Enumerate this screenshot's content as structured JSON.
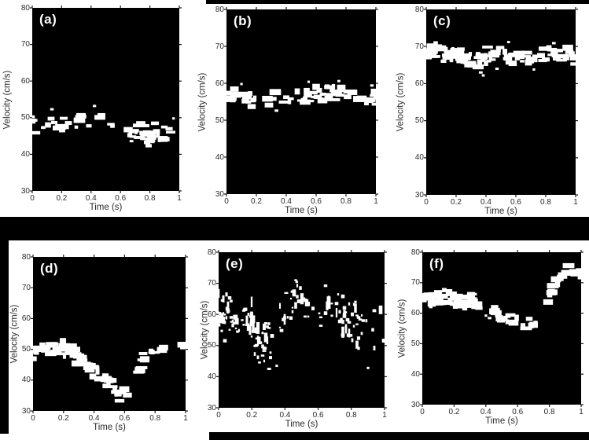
{
  "figure": {
    "title": "",
    "background": "#ffffff",
    "plot_background": "#000000",
    "trace_color": "#ffffff",
    "text_color": "#2a2a2a",
    "decor_color": "#000000",
    "axis": {
      "xlabel": "Time (s)",
      "ylabel": "Velocity (cm/s)",
      "xlim": [
        0,
        1
      ],
      "ylim": [
        30,
        80
      ],
      "xticks": [
        "0",
        "0.2",
        "0.4",
        "0.6",
        "0.8",
        "1"
      ],
      "xtick_values": [
        0,
        0.2,
        0.4,
        0.6,
        0.8,
        1
      ],
      "yticks": [
        "30",
        "40",
        "50",
        "60",
        "70",
        "80"
      ],
      "ytick_values": [
        30,
        40,
        50,
        60,
        70,
        80
      ],
      "grid": false,
      "legend": "none"
    }
  },
  "chart_data": [
    {
      "label": "(a)",
      "type": "scatter",
      "description": "binary speckle velocity band, slight downward drift ~49 to ~45 cm/s",
      "xlabel": "Time (s)",
      "ylabel": "Velocity (cm/s)",
      "xlim": [
        0,
        1
      ],
      "ylim": [
        30,
        80
      ],
      "x": [
        0,
        0.05,
        0.1,
        0.15,
        0.2,
        0.25,
        0.3,
        0.35,
        0.4,
        0.45,
        0.5,
        0.55,
        0.6,
        0.65,
        0.7,
        0.75,
        0.8,
        0.85,
        0.9,
        0.95,
        1
      ],
      "mean_velocity": [
        48.5,
        48.2,
        48.4,
        47.6,
        47.4,
        47.2,
        48.3,
        48.6,
        49.0,
        48.4,
        48.8,
        48.0,
        47.2,
        46.6,
        46.0,
        45.6,
        45.2,
        46.0,
        45.6,
        45.4,
        45.0
      ],
      "band_halfwidth": 2.3,
      "density": 0.62,
      "streaky": false,
      "gaps": [
        [
          0.255,
          0.285
        ],
        [
          0.555,
          0.58
        ]
      ],
      "outliers": [
        [
          0.42,
          53.2
        ],
        [
          0.13,
          52.3
        ],
        [
          0.67,
          43.6
        ],
        [
          0.96,
          49.8
        ]
      ]
    },
    {
      "label": "(b)",
      "type": "scatter",
      "description": "binary speckle velocity band, nearly flat ~55-57.5 cm/s",
      "xlabel": "Time (s)",
      "ylabel": "Velocity (cm/s)",
      "xlim": [
        0,
        1
      ],
      "ylim": [
        30,
        80
      ],
      "x": [
        0,
        0.05,
        0.1,
        0.15,
        0.2,
        0.25,
        0.3,
        0.35,
        0.4,
        0.45,
        0.5,
        0.55,
        0.6,
        0.65,
        0.7,
        0.75,
        0.8,
        0.85,
        0.9,
        0.95,
        1
      ],
      "mean_velocity": [
        56.6,
        56.4,
        56.0,
        55.6,
        56.0,
        55.4,
        55.0,
        55.2,
        55.6,
        55.2,
        56.4,
        57.4,
        57.0,
        57.2,
        57.4,
        57.0,
        57.4,
        56.6,
        55.6,
        55.4,
        56.4
      ],
      "band_halfwidth": 1.9,
      "density": 0.6,
      "streaky": false,
      "gaps": [
        [
          0.2,
          0.23
        ],
        [
          0.46,
          0.49
        ]
      ],
      "outliers": [
        [
          0.1,
          59.8
        ],
        [
          0.55,
          60.4
        ],
        [
          0.75,
          60.6
        ],
        [
          0.97,
          59.4
        ],
        [
          0.33,
          52.6
        ]
      ]
    },
    {
      "label": "(c)",
      "type": "scatter",
      "description": "binary speckle velocity band, nearly flat ~66-68.5 cm/s",
      "xlabel": "Time (s)",
      "ylabel": "Velocity (cm/s)",
      "xlim": [
        0,
        1
      ],
      "ylim": [
        30,
        80
      ],
      "x": [
        0,
        0.05,
        0.1,
        0.15,
        0.2,
        0.25,
        0.3,
        0.35,
        0.4,
        0.45,
        0.5,
        0.55,
        0.6,
        0.65,
        0.7,
        0.75,
        0.8,
        0.85,
        0.9,
        0.95,
        1
      ],
      "mean_velocity": [
        68.2,
        68.5,
        68.0,
        67.6,
        67.4,
        67.0,
        67.2,
        66.2,
        67.8,
        67.4,
        68.0,
        67.0,
        66.4,
        66.0,
        66.6,
        67.4,
        67.0,
        68.4,
        67.6,
        68.0,
        67.6
      ],
      "band_halfwidth": 1.9,
      "density": 0.6,
      "streaky": false,
      "gaps": [
        [
          0.31,
          0.34
        ]
      ],
      "outliers": [
        [
          0.36,
          63.0
        ],
        [
          0.38,
          62.2
        ],
        [
          0.72,
          63.8
        ],
        [
          0.55,
          71.2
        ],
        [
          0.85,
          70.9
        ],
        [
          0.47,
          64.0
        ]
      ]
    },
    {
      "label": "(d)",
      "type": "scatter",
      "description": "V-shaped dip: ~50 cm/s falling to ~34.5 at t=0.6, recovering to ~51.5",
      "xlabel": "Time (s)",
      "ylabel": "Velocity (cm/s)",
      "xlim": [
        0,
        1
      ],
      "ylim": [
        30,
        80
      ],
      "x": [
        0,
        0.05,
        0.1,
        0.15,
        0.2,
        0.25,
        0.3,
        0.35,
        0.4,
        0.45,
        0.5,
        0.55,
        0.6,
        0.65,
        0.7,
        0.75,
        0.8,
        0.85,
        0.9,
        0.95,
        1
      ],
      "mean_velocity": [
        49.2,
        49.4,
        49.6,
        50.2,
        50.4,
        49.0,
        47.0,
        44.6,
        43.4,
        41.4,
        38.6,
        35.2,
        34.6,
        37.6,
        44.0,
        49.4,
        51.0,
        50.6,
        51.0,
        51.4,
        51.4
      ],
      "band_halfwidth": 2.3,
      "density": 0.55,
      "streaky": false,
      "gaps": [
        [
          0.03,
          0.055
        ],
        [
          0.09,
          0.11
        ],
        [
          0.44,
          0.455
        ]
      ],
      "outliers": [
        [
          0.06,
          49.3
        ],
        [
          0.02,
          48.8
        ],
        [
          0.47,
          40.0
        ]
      ]
    },
    {
      "label": "(e)",
      "type": "scatter",
      "description": "very noisy dispersed band ~43-71 cm/s with dip near t=0.3 and peak near t=0.5",
      "xlabel": "Time (s)",
      "ylabel": "Velocity (cm/s)",
      "xlim": [
        0,
        1
      ],
      "ylim": [
        30,
        80
      ],
      "x": [
        0,
        0.05,
        0.1,
        0.15,
        0.2,
        0.25,
        0.3,
        0.35,
        0.4,
        0.45,
        0.5,
        0.55,
        0.6,
        0.65,
        0.7,
        0.75,
        0.8,
        0.85,
        0.9,
        0.95,
        1
      ],
      "mean_velocity": [
        60.0,
        58.0,
        57.0,
        58.5,
        57.0,
        51.0,
        50.0,
        52.0,
        60.0,
        64.0,
        63.5,
        63.0,
        60.5,
        61.0,
        62.0,
        60.0,
        58.5,
        54.5,
        52.5,
        56.0,
        58.5
      ],
      "band_halfwidth": 6.5,
      "density": 0.85,
      "streaky": true,
      "gaps": [],
      "outliers": [
        [
          0.02,
          64.5
        ],
        [
          0.3,
          42.5
        ],
        [
          0.35,
          43.5
        ],
        [
          0.47,
          70.5
        ],
        [
          0.9,
          42.8
        ]
      ]
    },
    {
      "label": "(f)",
      "type": "scatter",
      "description": "band ~64.5 cm/s, dips to ~56 near t=0.7, then rises steeply to ~75",
      "xlabel": "Time (s)",
      "ylabel": "Velocity (cm/s)",
      "xlim": [
        0,
        1
      ],
      "ylim": [
        30,
        80
      ],
      "x": [
        0,
        0.05,
        0.1,
        0.15,
        0.2,
        0.25,
        0.3,
        0.35,
        0.4,
        0.45,
        0.5,
        0.55,
        0.6,
        0.65,
        0.7,
        0.75,
        0.8,
        0.85,
        0.9,
        0.95,
        1
      ],
      "mean_velocity": [
        64.6,
        65.0,
        65.0,
        64.6,
        64.4,
        64.0,
        64.0,
        63.0,
        60.0,
        60.2,
        59.0,
        58.6,
        58.0,
        56.6,
        56.0,
        60.5,
        66.0,
        70.5,
        73.5,
        74.5,
        74.5
      ],
      "band_halfwidth": 2.2,
      "density": 0.62,
      "streaky": false,
      "gaps": [
        [
          0.365,
          0.425
        ]
      ],
      "outliers": [
        [
          0.4,
          59.2
        ],
        [
          0.42,
          58.4
        ],
        [
          0.05,
          62.0
        ]
      ]
    }
  ]
}
